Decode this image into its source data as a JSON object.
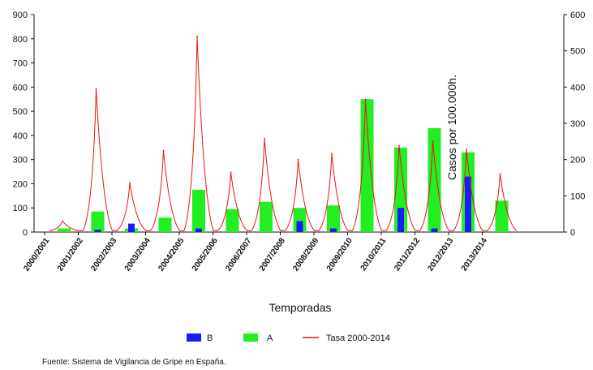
{
  "chart_data": {
    "type": "bar",
    "xlabel": "Temporadas",
    "y2label": "Casos por 100.000h.",
    "ylim": [
      0,
      900
    ],
    "y2lim": [
      0,
      600
    ],
    "yticks": [
      0,
      100,
      200,
      300,
      400,
      500,
      600,
      700,
      800,
      900
    ],
    "y2ticks": [
      0,
      100,
      200,
      300,
      400,
      500,
      600
    ],
    "categories": [
      "2000/2001",
      "2001/2002",
      "2002/2003",
      "2003/2004",
      "2004/2005",
      "2005/2006",
      "2006/2007",
      "2007/2008",
      "2008/2009",
      "2009/2010",
      "2010/2011",
      "2011/2012",
      "2012/2013",
      "2013/2014"
    ],
    "series": [
      {
        "name": "B",
        "type": "bar",
        "color": "#1a1aff",
        "values": [
          0,
          10,
          35,
          0,
          15,
          0,
          0,
          45,
          15,
          0,
          100,
          15,
          230,
          0
        ]
      },
      {
        "name": "A",
        "type": "bar",
        "color": "#22ee22",
        "values": [
          15,
          85,
          15,
          60,
          175,
          95,
          125,
          100,
          110,
          550,
          350,
          430,
          330,
          130
        ]
      },
      {
        "name": "Tasa 2000-2014",
        "type": "line",
        "axis": "right",
        "color": "#ee1111",
        "values": [
          30,
          395,
          135,
          225,
          540,
          165,
          258,
          200,
          216,
          366,
          238,
          250,
          228,
          160
        ]
      }
    ],
    "legend_position": "bottom",
    "grid": false
  },
  "source_note": "Fuente: Sistema de Vigilancia de Gripe en España."
}
